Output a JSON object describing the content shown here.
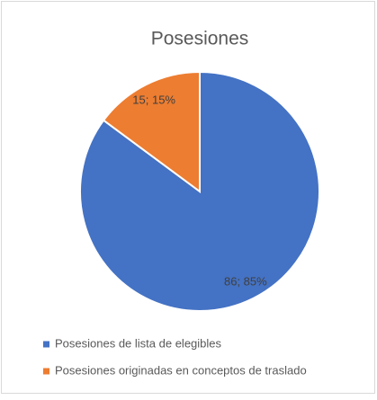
{
  "chart_data": {
    "type": "pie",
    "title": "Posesiones",
    "categories": [
      "Posesiones de lista de elegibles",
      "Posesiones originadas en conceptos de traslado"
    ],
    "values": [
      86,
      15
    ],
    "value_labels": [
      "86; 85%",
      "15; 15%"
    ],
    "colors": [
      "#4472c4",
      "#ed7d31"
    ],
    "legend": "bottom"
  }
}
